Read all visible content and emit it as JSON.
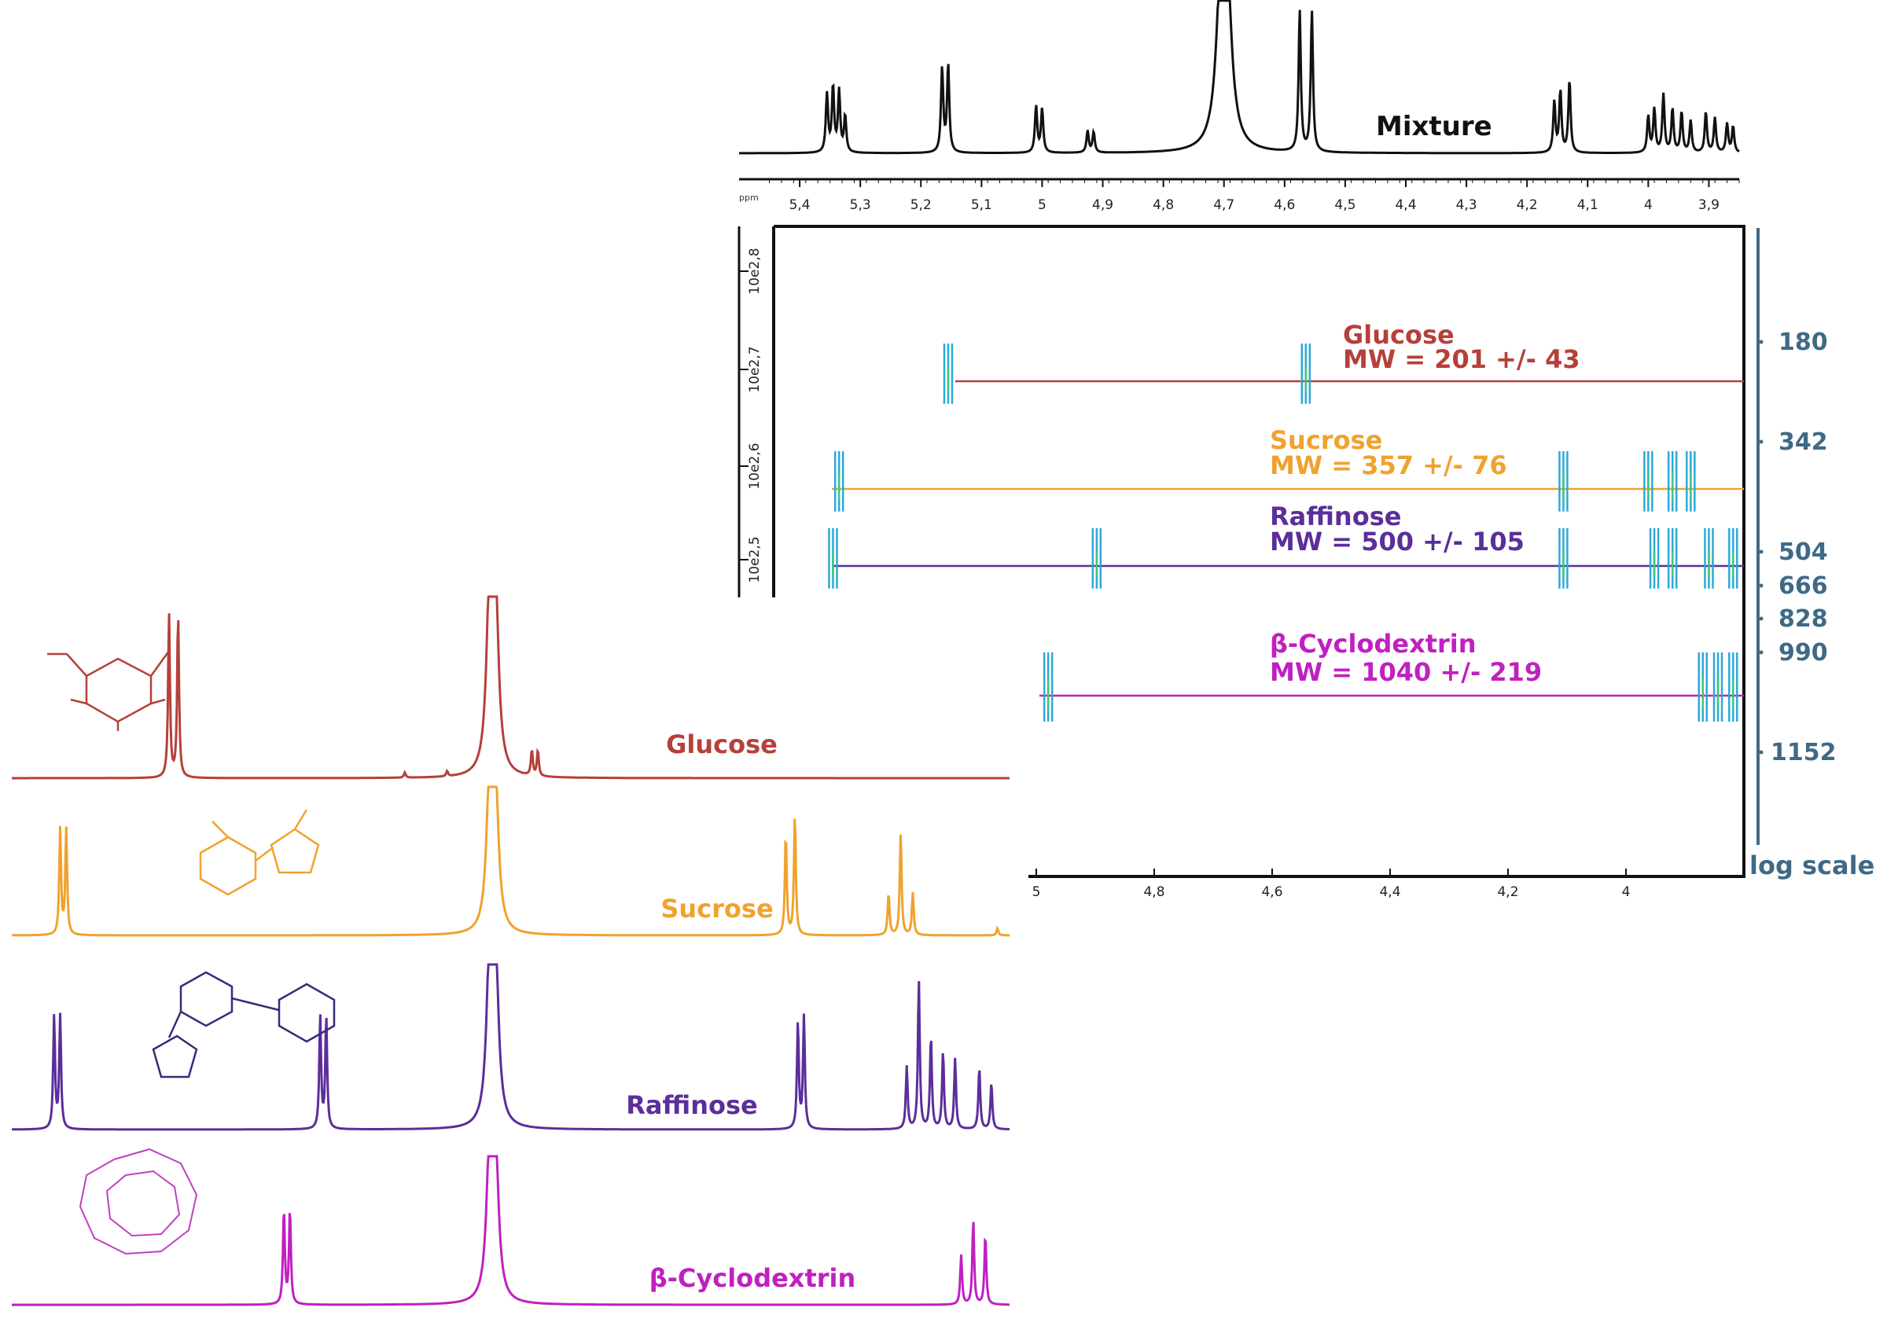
{
  "chart_data": {
    "type": "line",
    "xlabel_unit": "ppm",
    "mixture": {
      "label": "Mixture",
      "x_ticks": [
        "5,4",
        "5,3",
        "5,2",
        "5,1",
        "5",
        "4,9",
        "4,8",
        "4,7",
        "4,6",
        "4,5",
        "4,4",
        "4,3",
        "4,2",
        "4,1",
        "4",
        "3,9"
      ],
      "peaks": [
        {
          "ppm": 5.355,
          "h": 0.4
        },
        {
          "ppm": 5.345,
          "h": 0.45
        },
        {
          "ppm": 5.335,
          "h": 0.42
        },
        {
          "ppm": 5.325,
          "h": 0.25
        },
        {
          "ppm": 5.165,
          "h": 0.58
        },
        {
          "ppm": 5.155,
          "h": 0.6
        },
        {
          "ppm": 5.01,
          "h": 0.32
        },
        {
          "ppm": 5.0,
          "h": 0.3
        },
        {
          "ppm": 4.925,
          "h": 0.15
        },
        {
          "ppm": 4.915,
          "h": 0.14
        },
        {
          "ppm": 4.705,
          "h": 1.0
        },
        {
          "ppm": 4.695,
          "h": 1.0
        },
        {
          "ppm": 4.575,
          "h": 0.97
        },
        {
          "ppm": 4.555,
          "h": 0.97
        },
        {
          "ppm": 4.155,
          "h": 0.35
        },
        {
          "ppm": 4.145,
          "h": 0.42
        },
        {
          "ppm": 4.13,
          "h": 0.5
        },
        {
          "ppm": 4.0,
          "h": 0.25
        },
        {
          "ppm": 3.99,
          "h": 0.3
        },
        {
          "ppm": 3.975,
          "h": 0.4
        },
        {
          "ppm": 3.96,
          "h": 0.3
        },
        {
          "ppm": 3.945,
          "h": 0.28
        },
        {
          "ppm": 3.93,
          "h": 0.22
        },
        {
          "ppm": 3.905,
          "h": 0.28
        },
        {
          "ppm": 3.89,
          "h": 0.24
        },
        {
          "ppm": 3.87,
          "h": 0.2
        },
        {
          "ppm": 3.86,
          "h": 0.18
        }
      ]
    },
    "dosy": {
      "y_ticks": [
        "10e2,8",
        "10e2,7",
        "10e2,6",
        "10e2,5"
      ],
      "lower_x_ticks": [
        "5",
        "4,8",
        "4,6",
        "4,4",
        "4,2",
        "4"
      ],
      "mw_scale_label": "log scale",
      "mw_scale_ticks": [
        "180",
        "342",
        "504",
        "666",
        "828",
        "990",
        "1152"
      ],
      "series": [
        {
          "name": "Glucose",
          "mw_label": "MW = 201 +/- 43",
          "color": "#b5403a",
          "peaks_ppm": [
            5.155,
            4.565
          ]
        },
        {
          "name": "Sucrose",
          "mw_label": "MW = 357 +/- 76",
          "color": "#f0a22e",
          "peaks_ppm": [
            5.335,
            4.14,
            4.0,
            3.96,
            3.93
          ]
        },
        {
          "name": "Raffinose",
          "mw_label": "MW = 500 +/- 105",
          "color": "#5b2e9a",
          "peaks_ppm": [
            5.345,
            4.91,
            4.14,
            3.99,
            3.96,
            3.9,
            3.86
          ]
        },
        {
          "name": "β-Cyclodextrin",
          "mw_label": "MW = 1040 +/- 219",
          "color": "#c020c0",
          "peaks_ppm": [
            4.99,
            3.91,
            3.885,
            3.86
          ]
        }
      ]
    },
    "reference_spectra": [
      {
        "name": "Glucose",
        "color": "#b5403a"
      },
      {
        "name": "Sucrose",
        "color": "#f0a22e"
      },
      {
        "name": "Raffinose",
        "color": "#5b2e9a"
      },
      {
        "name": "β-Cyclodextrin",
        "color": "#c020c0"
      }
    ]
  }
}
